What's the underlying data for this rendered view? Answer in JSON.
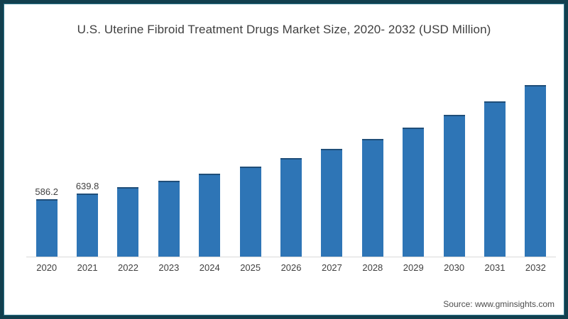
{
  "title": "U.S. Uterine Fibroid Treatment Drugs Market Size, 2020- 2032 (USD Million)",
  "source": "Source: www.gminsights.com",
  "colors": {
    "frame_border": "#123f4e",
    "frame_border_inner_highlight": "#2c768c",
    "bar": "#2e75b6",
    "bar_cap": "#1f4e79",
    "axis_line": "#d9d9d9",
    "title_text": "#3f3f3f",
    "label_text": "#404040",
    "source_text": "#4d4d4d",
    "background": "#ffffff"
  },
  "chart_data": {
    "type": "bar",
    "title": "U.S. Uterine Fibroid Treatment Drugs Market Size, 2020- 2032 (USD Million)",
    "xlabel": "",
    "ylabel": "USD Million",
    "categories": [
      "2020",
      "2021",
      "2022",
      "2023",
      "2024",
      "2025",
      "2026",
      "2027",
      "2028",
      "2029",
      "2030",
      "2031",
      "2032"
    ],
    "values": [
      586.2,
      639.8,
      706,
      771,
      842,
      915,
      1001,
      1095,
      1196,
      1311,
      1441,
      1578,
      1743
    ],
    "data_labels": {
      "2020": "586.2",
      "2021": "639.8"
    },
    "ylim": [
      0,
      1800
    ],
    "grid": false,
    "legend": "none",
    "y_axis_visible": false,
    "x_axis_line": true
  }
}
